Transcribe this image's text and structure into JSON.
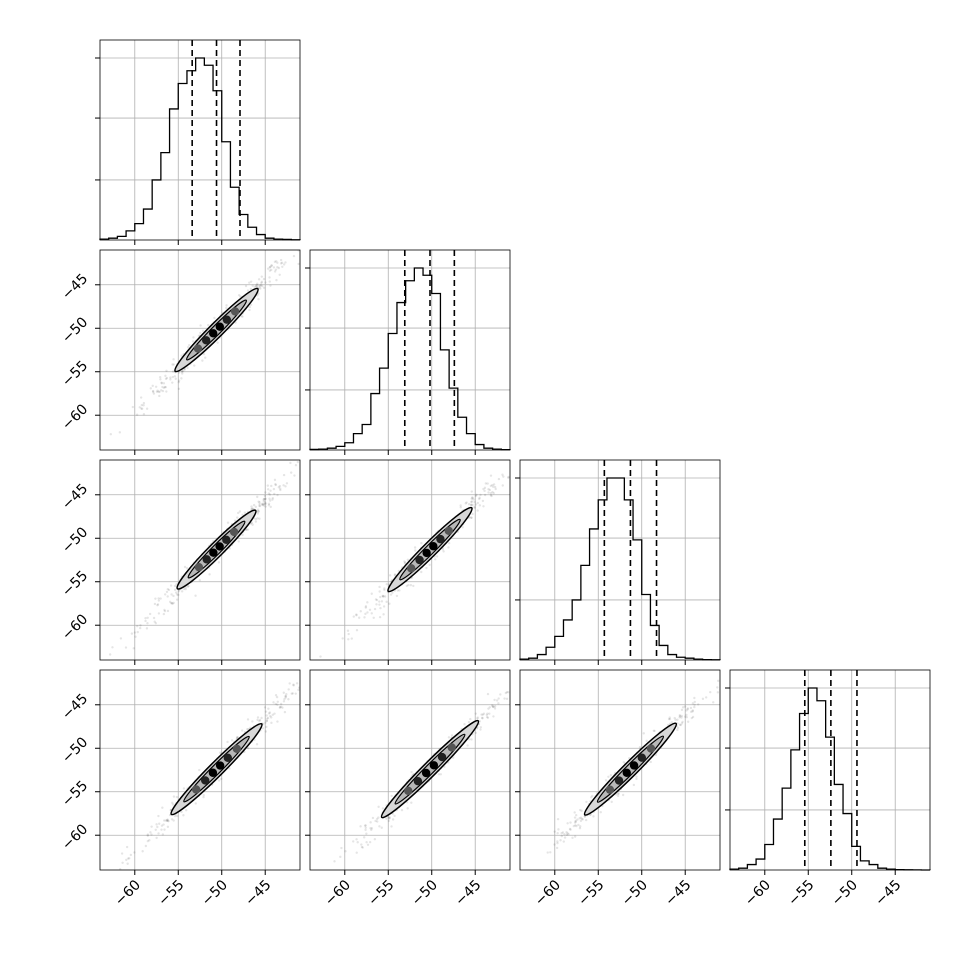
{
  "chart_data": {
    "type": "corner",
    "axis_range": [
      -64,
      -41
    ],
    "grid": true,
    "tick_values": [
      -60,
      -55,
      -50,
      -45
    ],
    "tick_labels": [
      "−60",
      "−55",
      "−50",
      "−45"
    ],
    "histograms": [
      {
        "name": "",
        "bin_edges": [
          -64.0,
          -63.0,
          -62.0,
          -61.0,
          -60.0,
          -59.0,
          -58.0,
          -57.0,
          -56.0,
          -55.0,
          -54.0,
          -53.0,
          -52.0,
          -51.0,
          -50.0,
          -49.0,
          -48.0,
          -47.0,
          -46.0,
          -45.0,
          -44.0,
          -43.0,
          -42.0,
          -41.0
        ],
        "counts": [
          0.005,
          0.01,
          0.02,
          0.05,
          0.09,
          0.17,
          0.33,
          0.48,
          0.72,
          0.86,
          0.93,
          1.0,
          0.96,
          0.82,
          0.54,
          0.29,
          0.14,
          0.07,
          0.03,
          0.01,
          0.005,
          0.003,
          0.001
        ],
        "quantiles": [
          -53.4,
          -50.6,
          -47.9
        ]
      },
      {
        "name": "",
        "bin_edges": [
          -64.0,
          -63.0,
          -62.0,
          -61.0,
          -60.0,
          -59.0,
          -58.0,
          -57.0,
          -56.0,
          -55.0,
          -54.0,
          -53.0,
          -52.0,
          -51.0,
          -50.0,
          -49.0,
          -48.0,
          -47.0,
          -46.0,
          -45.0,
          -44.0,
          -43.0,
          -42.0,
          -41.0
        ],
        "counts": [
          0.003,
          0.005,
          0.01,
          0.02,
          0.04,
          0.09,
          0.14,
          0.31,
          0.45,
          0.64,
          0.81,
          0.93,
          1.0,
          0.96,
          0.86,
          0.55,
          0.34,
          0.18,
          0.09,
          0.03,
          0.01,
          0.005,
          0.002
        ],
        "quantiles": [
          -53.1,
          -50.2,
          -47.4
        ]
      },
      {
        "name": "",
        "bin_edges": [
          -64.0,
          -63.0,
          -62.0,
          -61.0,
          -60.0,
          -59.0,
          -58.0,
          -57.0,
          -56.0,
          -55.0,
          -54.0,
          -53.0,
          -52.0,
          -51.0,
          -50.0,
          -49.0,
          -48.0,
          -47.0,
          -46.0,
          -45.0,
          -44.0,
          -43.0,
          -42.0,
          -41.0
        ],
        "counts": [
          0.005,
          0.01,
          0.03,
          0.07,
          0.13,
          0.22,
          0.33,
          0.52,
          0.72,
          0.88,
          1.0,
          1.0,
          0.88,
          0.66,
          0.36,
          0.19,
          0.08,
          0.03,
          0.015,
          0.01,
          0.005,
          0.002,
          0.001
        ],
        "quantiles": [
          -54.3,
          -51.3,
          -48.3
        ]
      },
      {
        "name": "",
        "bin_edges": [
          -64.0,
          -63.0,
          -62.0,
          -61.0,
          -60.0,
          -59.0,
          -58.0,
          -57.0,
          -56.0,
          -55.0,
          -54.0,
          -53.0,
          -52.0,
          -51.0,
          -50.0,
          -49.0,
          -48.0,
          -47.0,
          -46.0,
          -45.0,
          -44.0,
          -43.0,
          -42.0,
          -41.0
        ],
        "counts": [
          0.005,
          0.01,
          0.03,
          0.06,
          0.14,
          0.28,
          0.45,
          0.66,
          0.86,
          1.0,
          0.93,
          0.73,
          0.47,
          0.31,
          0.13,
          0.05,
          0.03,
          0.01,
          0.005,
          0.002,
          0.001,
          0.0005,
          0.0002
        ],
        "quantiles": [
          -55.4,
          -52.4,
          -49.4
        ]
      }
    ],
    "pairs": [
      {
        "row": 1,
        "col": 0,
        "mean_x": -50.6,
        "mean_y": -50.2,
        "contour_x_range": [
          -55.4,
          -45.9
        ],
        "width": 0.9
      },
      {
        "row": 2,
        "col": 0,
        "mean_x": -50.6,
        "mean_y": -51.3,
        "contour_x_range": [
          -55.3,
          -46.3
        ],
        "width": 0.9
      },
      {
        "row": 2,
        "col": 1,
        "mean_x": -50.2,
        "mean_y": -51.3,
        "contour_x_range": [
          -55.0,
          -45.4
        ],
        "width": 0.9
      },
      {
        "row": 3,
        "col": 0,
        "mean_x": -50.6,
        "mean_y": -52.4,
        "contour_x_range": [
          -56.2,
          -45.8
        ],
        "width": 0.9
      },
      {
        "row": 3,
        "col": 1,
        "mean_x": -50.2,
        "mean_y": -52.4,
        "contour_x_range": [
          -56.1,
          -45.0
        ],
        "width": 0.9
      },
      {
        "row": 3,
        "col": 2,
        "mean_x": -51.3,
        "mean_y": -52.4,
        "contour_x_range": [
          -56.9,
          -46.4
        ],
        "width": 0.9
      }
    ]
  }
}
